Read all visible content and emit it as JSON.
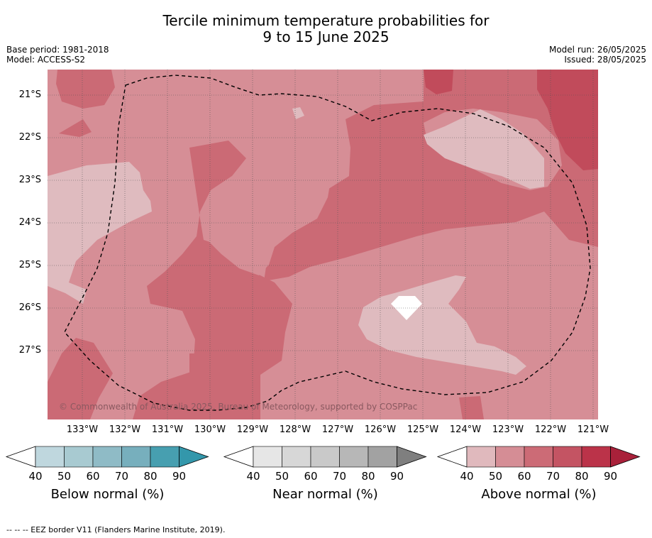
{
  "title_line1": "Tercile minimum temperature probabilities for",
  "title_line2": "9 to 15 June 2025",
  "base_period": "Base period: 1981-2018",
  "model": "Model: ACCESS-S2",
  "model_run": "Model run: 26/05/2025",
  "issued": "Issued: 28/05/2025",
  "copyright": "© Commonwealth of Australia 2025, Bureau of Meteorology, supported by COSPPac",
  "lat_labels": [
    "21°S",
    "22°S",
    "23°S",
    "24°S",
    "25°S",
    "26°S",
    "27°S"
  ],
  "lon_labels": [
    "133°W",
    "132°W",
    "131°W",
    "130°W",
    "129°W",
    "128°W",
    "127°W",
    "126°W",
    "125°W",
    "124°W",
    "123°W",
    "122°W",
    "121°W"
  ],
  "colorbars": [
    {
      "title": "Below normal (%)",
      "ticks": [
        "40",
        "50",
        "60",
        "70",
        "80",
        "90"
      ],
      "colors": [
        "#bfd7de",
        "#a8cad1",
        "#8fbbc6",
        "#77afbd",
        "#479fb0",
        "#3397ab"
      ]
    },
    {
      "title": "Near normal (%)",
      "ticks": [
        "40",
        "50",
        "60",
        "70",
        "80",
        "90"
      ],
      "colors": [
        "#e6e6e6",
        "#d7d7d7",
        "#c9c9c9",
        "#b7b7b7",
        "#a2a2a2",
        "#7f7f7f"
      ]
    },
    {
      "title": "Above normal (%)",
      "ticks": [
        "40",
        "50",
        "60",
        "70",
        "80",
        "90"
      ],
      "colors": [
        "#e0b9bd",
        "#d58d95",
        "#cc6b76",
        "#c45463",
        "#bb3349",
        "#a9213a"
      ]
    }
  ],
  "footer": "--  --  -- EEZ border V11 (Flanders Marine Institute, 2019).",
  "map_colors": {
    "above_40_50": "#dfbbbf",
    "above_50_60": "#d68e96",
    "above_60_70": "#cb6a75",
    "above_70_80": "#c14b5b"
  }
}
